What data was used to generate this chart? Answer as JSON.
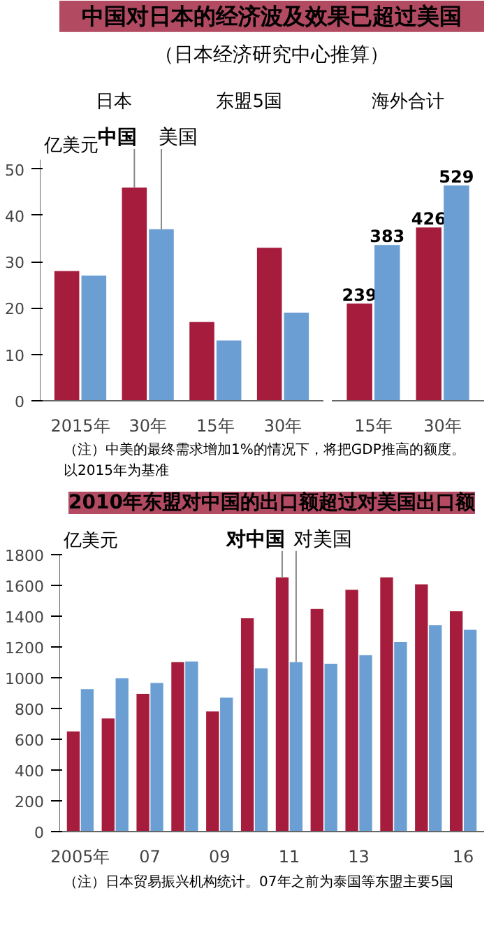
{
  "chart_data": [
    {
      "type": "bar",
      "title": "中国对日本的经济波及效果已超过美国",
      "subtitle": "（日本经济研究中心推算）",
      "categories": [
        "2015年",
        "30年",
        "15年",
        "30年"
      ],
      "ylabel": "亿美元",
      "ylim": [
        0,
        52
      ],
      "yticks": [
        0,
        10,
        20,
        30,
        40,
        50
      ],
      "grid": false,
      "annotations": [
        "日本",
        "东盟5国"
      ],
      "series": [
        {
          "name": "中国",
          "color": "#a51c3c",
          "values": [
            28,
            46,
            17,
            33
          ]
        },
        {
          "name": "美国",
          "color": "#6b9fd4",
          "values": [
            27,
            37,
            13,
            19
          ]
        }
      ]
    },
    {
      "type": "bar",
      "categories": [
        "15年",
        "30年"
      ],
      "tick_labels": "x",
      "data_labels": true,
      "grid": false,
      "annotations": [
        "海外合计",
        "（注）中美的最终需求增加1%的情况下，将把GDP推高的额度。以2015年为基准"
      ],
      "series": [
        {
          "color": "#a51c3c",
          "values": [
            239,
            426
          ]
        },
        {
          "color": "#6b9fd4",
          "values": [
            383,
            529
          ]
        }
      ]
    },
    {
      "type": "bar",
      "title": "2010年东盟对中国的出口额超过对美国出口额",
      "categories": [
        "2005年",
        null,
        "07",
        null,
        "09",
        null,
        "11",
        null,
        "13",
        null,
        null,
        "16"
      ],
      "ylabel": "亿美元",
      "ylim": [
        0,
        1800
      ],
      "yticks": [
        0,
        200,
        400,
        600,
        800,
        1000,
        1200,
        1400,
        1600,
        1800
      ],
      "grid": false,
      "annotations": [
        "（注）日本贸易振兴机构统计。07年之前为泰国等东盟主要5国"
      ],
      "series": [
        {
          "name": "对中国",
          "color": "#a51c3c",
          "values": [
            650,
            735,
            895,
            1100,
            780,
            1385,
            1650,
            1445,
            1570,
            1650,
            1605,
            1430
          ]
        },
        {
          "name": "对美国",
          "color": "#6b9fd4",
          "values": [
            925,
            995,
            965,
            1105,
            870,
            1060,
            1100,
            1090,
            1145,
            1230,
            1340,
            1310
          ]
        }
      ]
    }
  ]
}
